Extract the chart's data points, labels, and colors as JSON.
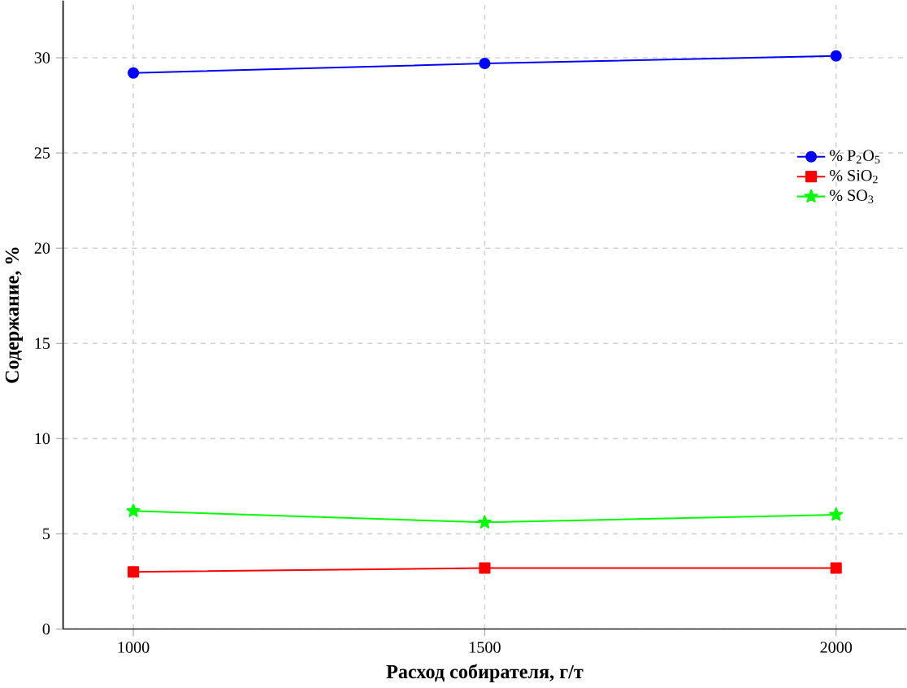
{
  "chart_data": {
    "type": "line",
    "xlabel": "Расход собирателя, г/т",
    "ylabel": "Содержание, %",
    "x": [
      1000,
      1500,
      2000
    ],
    "series": [
      {
        "name": "% P$_{2}$O$_{5}$",
        "color": "#0000ff",
        "marker": "circle",
        "values": [
          29.2,
          29.7,
          30.1
        ]
      },
      {
        "name": "% SiO$_{2}$",
        "color": "#ff0000",
        "marker": "square",
        "values": [
          3.0,
          3.2,
          3.2
        ]
      },
      {
        "name": "% SO$_{3}$",
        "color": "#00ff00",
        "marker": "star",
        "values": [
          6.2,
          5.6,
          6.0
        ]
      }
    ],
    "xlim": [
      900,
      2100
    ],
    "ylim": [
      0,
      33
    ],
    "xticks": [
      1000,
      1500,
      2000
    ],
    "yticks": [
      0,
      5,
      10,
      15,
      20,
      25,
      30
    ],
    "grid": true,
    "legend": "right"
  }
}
